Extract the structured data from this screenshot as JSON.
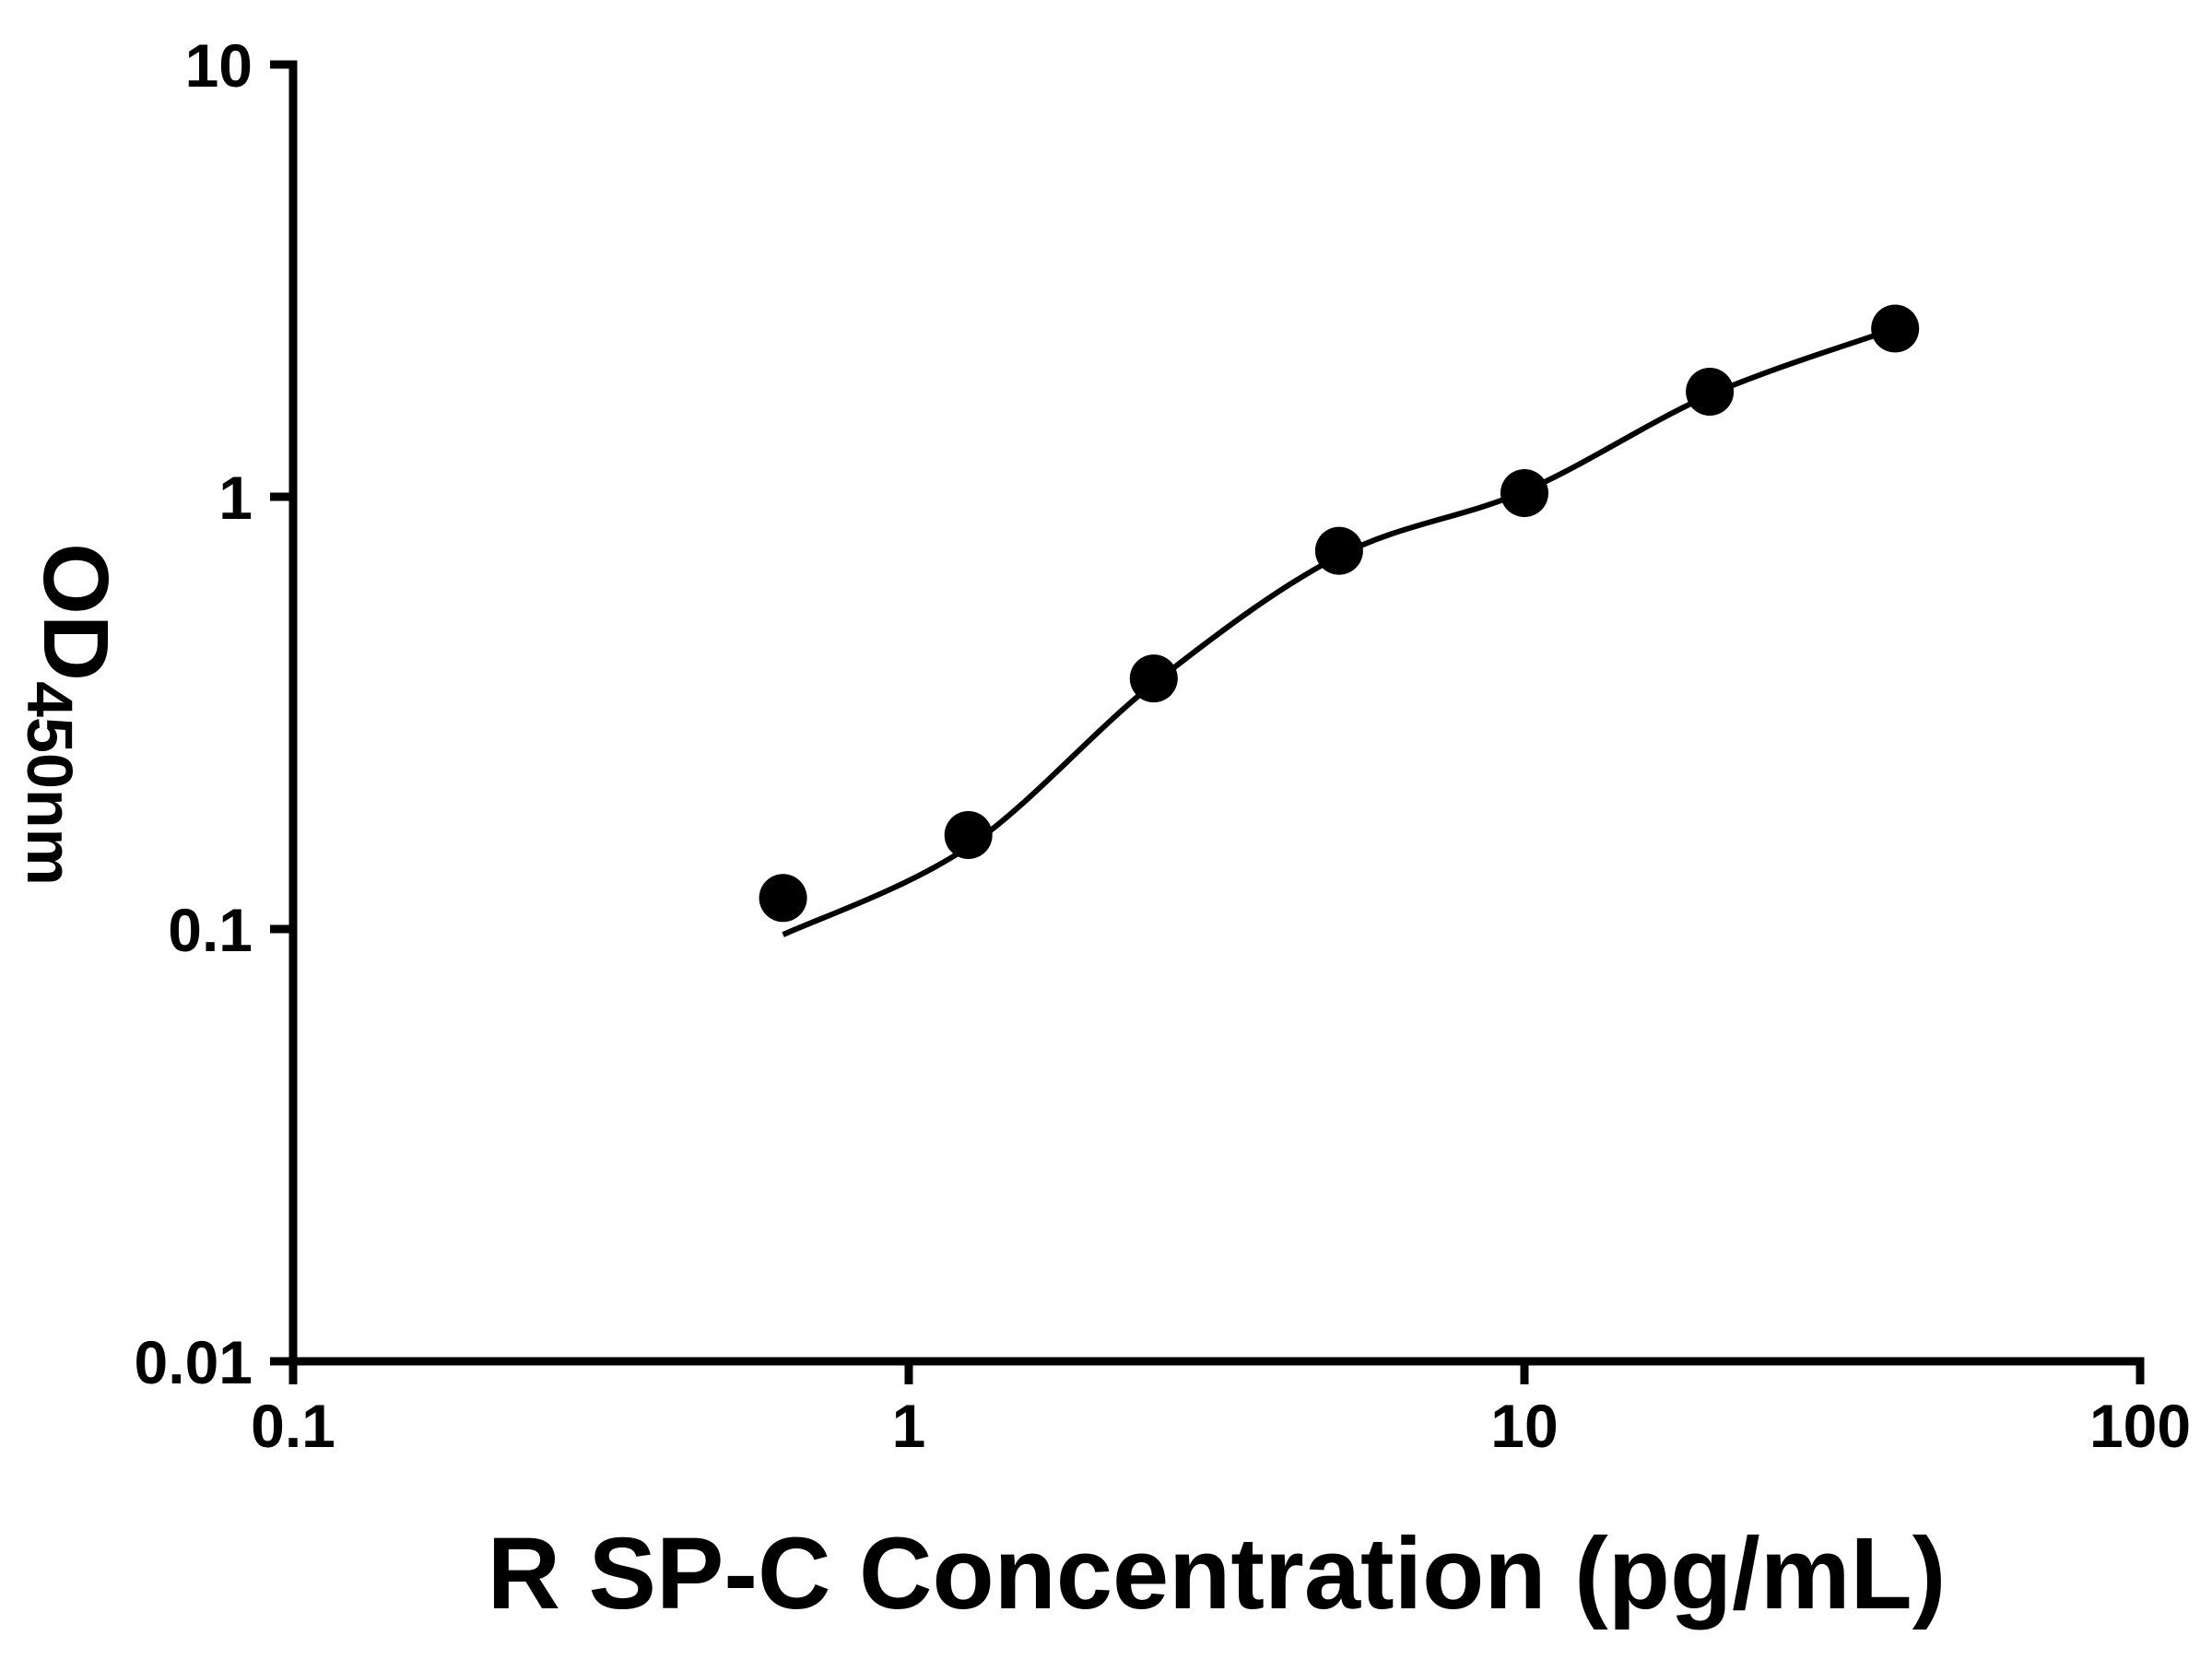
{
  "figure": {
    "background": "#ffffff",
    "axis_color": "#000000"
  },
  "chart_data": {
    "type": "scatter",
    "title": "",
    "xlabel": "R SP-C Concentration (pg/mL)",
    "ylabel": "OD450nm",
    "ylabel_main": "OD",
    "ylabel_sub": "450nm",
    "x_scale": "log",
    "y_scale": "log",
    "xlim": [
      0.1,
      100
    ],
    "ylim": [
      0.01,
      10
    ],
    "x_tick_values": [
      0.1,
      1,
      10,
      100
    ],
    "x_tick_labels": [
      "0.1",
      "1",
      "10",
      "100"
    ],
    "y_tick_values": [
      0.01,
      0.1,
      1,
      10
    ],
    "y_tick_labels": [
      "0.01",
      "0.1",
      "1",
      "10"
    ],
    "grid": false,
    "legend": false,
    "series": [
      {
        "name": "fit-curve",
        "type": "line",
        "color": "#000000",
        "x": [
          0.625,
          1.25,
          2.5,
          5,
          10,
          20,
          40
        ],
        "y": [
          0.097,
          0.155,
          0.37,
          0.73,
          1.03,
          1.72,
          2.45
        ]
      },
      {
        "name": "standard-points",
        "type": "scatter",
        "marker": "filled-circle",
        "color": "#000000",
        "x": [
          0.625,
          1.25,
          2.5,
          5,
          10,
          20,
          40
        ],
        "y": [
          0.118,
          0.165,
          0.38,
          0.75,
          1.02,
          1.75,
          2.45
        ]
      }
    ]
  }
}
